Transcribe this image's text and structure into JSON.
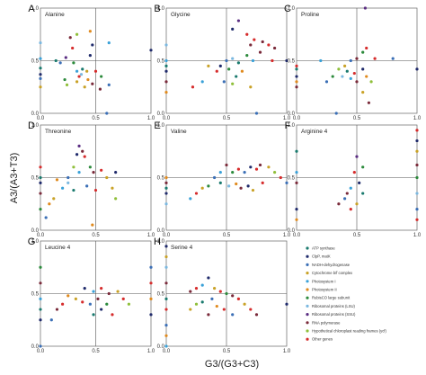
{
  "figure": {
    "ylabel": "A3/(A3+T3)",
    "xlabel": "G3/(G3+C3)"
  },
  "legend": [
    {
      "label": "ATP synthase",
      "color": "#1a7a6e"
    },
    {
      "label": "ClpP, matK",
      "color": "#1f2a6b"
    },
    {
      "label": "NADH-dehydrogenase",
      "color": "#3b6fb6"
    },
    {
      "label": "Cytochrome b/f complex",
      "color": "#c9a227"
    },
    {
      "label": "Photosystem I",
      "color": "#3aa1d8"
    },
    {
      "label": "Photosystem II",
      "color": "#e08a1e"
    },
    {
      "label": "RubisCO large subunit",
      "color": "#2c8a3c"
    },
    {
      "label": "Ribosomal proteins (LSU)",
      "color": "#7bb8e0"
    },
    {
      "label": "Ribosomal proteins (SSU)",
      "color": "#5a2d82"
    },
    {
      "label": "RNA polymerase",
      "color": "#7a2a3a"
    },
    {
      "label": "Hypothetical chloroplast reading frames (ycf)",
      "color": "#8fbf3a"
    },
    {
      "label": "Other genes",
      "color": "#d62c2c"
    }
  ],
  "chart_data": [
    {
      "type": "scatter",
      "letter": "A",
      "title": "Alanine",
      "xlim": [
        0,
        1
      ],
      "ylim": [
        0,
        1
      ],
      "xticks": [
        "0.0",
        "0.5",
        "1.0"
      ],
      "yticks": [
        "0.0",
        "0.5",
        "1.0"
      ],
      "points": [
        [
          0.33,
          0.75,
          10
        ],
        [
          0.27,
          0.72,
          9
        ],
        [
          0.29,
          0.62,
          11
        ],
        [
          0.45,
          0.78,
          5
        ],
        [
          0.47,
          0.65,
          1
        ],
        [
          0.62,
          0.67,
          4
        ],
        [
          1.0,
          0.6,
          1
        ],
        [
          0.23,
          0.53,
          8
        ],
        [
          0.14,
          0.5,
          0
        ],
        [
          0.18,
          0.48,
          2
        ],
        [
          0.3,
          0.48,
          6
        ],
        [
          0.33,
          0.4,
          4
        ],
        [
          0.38,
          0.42,
          0
        ],
        [
          0.37,
          0.37,
          7
        ],
        [
          0.42,
          0.4,
          3
        ],
        [
          0.5,
          0.4,
          11
        ],
        [
          0.55,
          0.35,
          6
        ],
        [
          0.33,
          0.3,
          3
        ],
        [
          0.43,
          0.32,
          5
        ],
        [
          0.47,
          0.28,
          9
        ],
        [
          0.22,
          0.32,
          6
        ],
        [
          0.24,
          0.27,
          10
        ],
        [
          0.4,
          0.25,
          3
        ],
        [
          0.54,
          0.23,
          9
        ],
        [
          0.62,
          0.27,
          2
        ],
        [
          0.0,
          0.43,
          0
        ],
        [
          0.0,
          0.37,
          1
        ],
        [
          0.0,
          0.33,
          2
        ],
        [
          0.0,
          0.25,
          3
        ],
        [
          0.0,
          0.52,
          4
        ],
        [
          0.0,
          0.67,
          7
        ],
        [
          0.35,
          0.35,
          11
        ],
        [
          0.6,
          0.0,
          2
        ],
        [
          0.45,
          0.55,
          1
        ]
      ]
    },
    {
      "type": "scatter",
      "letter": "B",
      "title": "Glycine",
      "xlim": [
        0,
        1
      ],
      "ylim": [
        0,
        1
      ],
      "xticks": [
        "0.0",
        "0.5",
        "1.0"
      ],
      "yticks": [
        "0.0",
        "0.5",
        "1.0"
      ],
      "points": [
        [
          0.6,
          0.88,
          8
        ],
        [
          0.55,
          0.8,
          1
        ],
        [
          0.67,
          0.75,
          11
        ],
        [
          0.7,
          0.65,
          9
        ],
        [
          0.73,
          0.7,
          11
        ],
        [
          0.8,
          0.68,
          9
        ],
        [
          0.85,
          0.65,
          11
        ],
        [
          0.9,
          0.62,
          9
        ],
        [
          0.67,
          0.55,
          6
        ],
        [
          0.78,
          0.58,
          9
        ],
        [
          0.88,
          0.5,
          11
        ],
        [
          0.72,
          0.5,
          4
        ],
        [
          0.6,
          0.48,
          0
        ],
        [
          0.55,
          0.52,
          7
        ],
        [
          0.5,
          0.5,
          2
        ],
        [
          0.45,
          0.45,
          1
        ],
        [
          0.35,
          0.45,
          3
        ],
        [
          0.42,
          0.4,
          11
        ],
        [
          0.52,
          0.42,
          6
        ],
        [
          0.58,
          0.35,
          0
        ],
        [
          0.48,
          0.3,
          2
        ],
        [
          0.55,
          0.28,
          10
        ],
        [
          0.63,
          0.4,
          5
        ],
        [
          0.3,
          0.3,
          4
        ],
        [
          0.22,
          0.25,
          11
        ],
        [
          0.7,
          0.25,
          3
        ],
        [
          0.0,
          0.45,
          0
        ],
        [
          0.0,
          0.4,
          1
        ],
        [
          0.0,
          0.3,
          9
        ],
        [
          0.0,
          0.2,
          5
        ],
        [
          0.0,
          0.5,
          4
        ],
        [
          0.0,
          0.65,
          7
        ],
        [
          0.75,
          0.0,
          2
        ],
        [
          1.0,
          0.5,
          1
        ]
      ]
    },
    {
      "type": "scatter",
      "letter": "C",
      "title": "Proline",
      "xlim": [
        0,
        1
      ],
      "ylim": [
        0,
        1
      ],
      "xticks": [
        "0.0",
        "0.5",
        "1.0"
      ],
      "yticks": [
        "0.0",
        "0.5",
        "1.0"
      ],
      "points": [
        [
          0.57,
          1.0,
          8
        ],
        [
          0.58,
          0.62,
          11
        ],
        [
          0.55,
          0.58,
          6
        ],
        [
          0.5,
          0.52,
          9
        ],
        [
          0.45,
          0.5,
          2
        ],
        [
          0.65,
          0.52,
          11
        ],
        [
          0.4,
          0.45,
          3
        ],
        [
          0.35,
          0.42,
          10
        ],
        [
          0.42,
          0.4,
          0
        ],
        [
          0.48,
          0.38,
          11
        ],
        [
          0.55,
          0.42,
          1
        ],
        [
          0.58,
          0.35,
          5
        ],
        [
          0.5,
          0.3,
          9
        ],
        [
          0.45,
          0.33,
          4
        ],
        [
          0.38,
          0.35,
          7
        ],
        [
          0.3,
          0.35,
          6
        ],
        [
          0.25,
          0.3,
          2
        ],
        [
          0.62,
          0.3,
          10
        ],
        [
          0.55,
          0.2,
          3
        ],
        [
          0.6,
          0.1,
          9
        ],
        [
          0.8,
          0.52,
          2
        ],
        [
          0.2,
          0.5,
          4
        ],
        [
          0.0,
          0.42,
          0
        ],
        [
          0.0,
          0.35,
          1
        ],
        [
          0.0,
          0.3,
          5
        ],
        [
          0.0,
          0.25,
          9
        ],
        [
          0.0,
          0.45,
          11
        ],
        [
          1.0,
          0.42,
          1
        ],
        [
          0.33,
          0.0,
          2
        ]
      ]
    },
    {
      "type": "scatter",
      "letter": "D",
      "title": "Threonine",
      "xlim": [
        0,
        1
      ],
      "ylim": [
        0,
        1
      ],
      "xticks": [
        "0.0",
        "0.5",
        "1.0"
      ],
      "yticks": [
        "0.0",
        "0.5",
        "1.0"
      ],
      "points": [
        [
          0.35,
          0.8,
          8
        ],
        [
          0.33,
          0.72,
          1
        ],
        [
          0.38,
          0.75,
          9
        ],
        [
          0.4,
          0.7,
          11
        ],
        [
          0.3,
          0.6,
          10
        ],
        [
          0.45,
          0.6,
          6
        ],
        [
          0.35,
          0.55,
          4
        ],
        [
          0.48,
          0.55,
          9
        ],
        [
          0.55,
          0.57,
          11
        ],
        [
          0.68,
          0.55,
          1
        ],
        [
          0.6,
          0.5,
          3
        ],
        [
          0.25,
          0.5,
          2
        ],
        [
          0.15,
          0.48,
          5
        ],
        [
          0.2,
          0.4,
          4
        ],
        [
          0.25,
          0.45,
          7
        ],
        [
          0.3,
          0.38,
          0
        ],
        [
          0.42,
          0.42,
          2
        ],
        [
          0.5,
          0.38,
          11
        ],
        [
          0.65,
          0.4,
          3
        ],
        [
          0.68,
          0.3,
          10
        ],
        [
          0.12,
          0.3,
          3
        ],
        [
          0.08,
          0.25,
          5
        ],
        [
          0.05,
          0.12,
          2
        ],
        [
          0.0,
          0.5,
          0
        ],
        [
          0.0,
          0.45,
          1
        ],
        [
          0.0,
          0.35,
          9
        ],
        [
          0.0,
          0.2,
          6
        ],
        [
          0.0,
          0.6,
          11
        ],
        [
          0.47,
          0.05,
          5
        ]
      ]
    },
    {
      "type": "scatter",
      "letter": "E",
      "title": "Valine",
      "xlim": [
        0,
        1
      ],
      "ylim": [
        0,
        1
      ],
      "xticks": [
        "0.0",
        "0.5",
        "1.0"
      ],
      "yticks": [
        "0.0",
        "0.5",
        "1.0"
      ],
      "points": [
        [
          0.75,
          0.58,
          11
        ],
        [
          0.78,
          0.62,
          9
        ],
        [
          0.85,
          0.6,
          3
        ],
        [
          0.9,
          0.55,
          10
        ],
        [
          0.7,
          0.6,
          1
        ],
        [
          0.65,
          0.55,
          2
        ],
        [
          0.6,
          0.58,
          11
        ],
        [
          0.55,
          0.55,
          6
        ],
        [
          0.5,
          0.62,
          9
        ],
        [
          0.45,
          0.55,
          4
        ],
        [
          0.4,
          0.5,
          2
        ],
        [
          0.45,
          0.45,
          0
        ],
        [
          0.52,
          0.42,
          7
        ],
        [
          0.58,
          0.44,
          5
        ],
        [
          0.62,
          0.4,
          9
        ],
        [
          0.68,
          0.42,
          1
        ],
        [
          0.72,
          0.38,
          3
        ],
        [
          0.8,
          0.45,
          11
        ],
        [
          0.35,
          0.42,
          6
        ],
        [
          0.3,
          0.4,
          3
        ],
        [
          0.25,
          0.35,
          11
        ],
        [
          0.2,
          0.3,
          4
        ],
        [
          0.95,
          0.5,
          11
        ],
        [
          0.0,
          0.5,
          5
        ],
        [
          0.0,
          0.45,
          9
        ],
        [
          0.0,
          0.4,
          0
        ],
        [
          0.0,
          0.35,
          1
        ],
        [
          0.0,
          0.25,
          7
        ],
        [
          1.0,
          0.45,
          2
        ]
      ]
    },
    {
      "type": "scatter",
      "letter": "F",
      "title": "Arginine 4",
      "xlim": [
        0,
        1
      ],
      "ylim": [
        0,
        1
      ],
      "xticks": [
        "0.0",
        "0.5",
        "1.0"
      ],
      "yticks": [
        "0.0",
        "0.5",
        "1.0"
      ],
      "points": [
        [
          0.5,
          0.7,
          8
        ],
        [
          0.48,
          0.55,
          11
        ],
        [
          0.52,
          0.45,
          1
        ],
        [
          0.45,
          0.4,
          4
        ],
        [
          0.42,
          0.35,
          9
        ],
        [
          0.4,
          0.3,
          2
        ],
        [
          0.55,
          0.35,
          0
        ],
        [
          0.5,
          0.25,
          3
        ],
        [
          0.45,
          0.2,
          11
        ],
        [
          0.35,
          0.25,
          9
        ],
        [
          0.55,
          0.6,
          6
        ],
        [
          1.0,
          0.95,
          11
        ],
        [
          1.0,
          0.85,
          1
        ],
        [
          1.0,
          0.75,
          3
        ],
        [
          1.0,
          0.62,
          9
        ],
        [
          1.0,
          0.5,
          6
        ],
        [
          1.0,
          0.35,
          7
        ],
        [
          1.0,
          0.2,
          2
        ],
        [
          1.0,
          0.1,
          11
        ],
        [
          0.0,
          0.75,
          0
        ],
        [
          0.0,
          0.55,
          4
        ],
        [
          0.0,
          0.45,
          9
        ],
        [
          0.0,
          0.2,
          1
        ],
        [
          0.0,
          0.1,
          5
        ]
      ]
    },
    {
      "type": "scatter",
      "letter": "G",
      "title": "Leucine 4",
      "xlim": [
        0,
        1
      ],
      "ylim": [
        0,
        1
      ],
      "xticks": [
        "0.0",
        "0.5",
        "1.0"
      ],
      "yticks": [
        "0.0",
        "0.5",
        "1.0"
      ],
      "points": [
        [
          0.4,
          0.55,
          1
        ],
        [
          0.48,
          0.52,
          4
        ],
        [
          0.55,
          0.55,
          11
        ],
        [
          0.62,
          0.5,
          9
        ],
        [
          0.7,
          0.52,
          3
        ],
        [
          0.75,
          0.45,
          11
        ],
        [
          0.8,
          0.4,
          10
        ],
        [
          0.6,
          0.4,
          6
        ],
        [
          0.52,
          0.45,
          9
        ],
        [
          0.45,
          0.4,
          2
        ],
        [
          0.38,
          0.42,
          11
        ],
        [
          0.32,
          0.45,
          3
        ],
        [
          0.25,
          0.48,
          5
        ],
        [
          0.2,
          0.4,
          11
        ],
        [
          0.15,
          0.35,
          9
        ],
        [
          0.1,
          0.25,
          2
        ],
        [
          0.55,
          0.35,
          1
        ],
        [
          0.65,
          0.3,
          11
        ],
        [
          0.48,
          0.3,
          0
        ],
        [
          0.0,
          0.75,
          6
        ],
        [
          0.0,
          0.6,
          9
        ],
        [
          0.0,
          0.45,
          4
        ],
        [
          0.0,
          0.35,
          0
        ],
        [
          0.0,
          0.25,
          1
        ],
        [
          1.0,
          0.75,
          2
        ],
        [
          1.0,
          0.6,
          11
        ],
        [
          1.0,
          0.45,
          5
        ],
        [
          1.0,
          0.3,
          1
        ],
        [
          0.0,
          0.0,
          2
        ]
      ]
    },
    {
      "type": "scatter",
      "letter": "H",
      "title": "Serine 4",
      "xlim": [
        0,
        1
      ],
      "ylim": [
        0,
        1
      ],
      "xticks": [
        "0.0",
        "0.5",
        "1.0"
      ],
      "yticks": [
        "0.0",
        "0.5",
        "1.0"
      ],
      "points": [
        [
          0.35,
          0.65,
          1
        ],
        [
          0.3,
          0.58,
          4
        ],
        [
          0.25,
          0.55,
          11
        ],
        [
          0.2,
          0.52,
          9
        ],
        [
          0.4,
          0.55,
          3
        ],
        [
          0.45,
          0.52,
          11
        ],
        [
          0.5,
          0.5,
          6
        ],
        [
          0.55,
          0.48,
          9
        ],
        [
          0.6,
          0.45,
          11
        ],
        [
          0.65,
          0.4,
          3
        ],
        [
          0.7,
          0.35,
          11
        ],
        [
          0.75,
          0.3,
          9
        ],
        [
          0.38,
          0.45,
          2
        ],
        [
          0.3,
          0.42,
          0
        ],
        [
          0.25,
          0.4,
          10
        ],
        [
          0.42,
          0.38,
          5
        ],
        [
          0.48,
          0.35,
          11
        ],
        [
          0.55,
          0.3,
          2
        ],
        [
          0.35,
          0.3,
          9
        ],
        [
          0.2,
          0.35,
          3
        ],
        [
          0.0,
          0.95,
          1
        ],
        [
          0.0,
          0.85,
          3
        ],
        [
          0.0,
          0.75,
          7
        ],
        [
          0.0,
          0.6,
          9
        ],
        [
          0.0,
          0.45,
          0
        ],
        [
          0.0,
          0.35,
          11
        ],
        [
          0.0,
          0.2,
          2
        ],
        [
          0.0,
          0.1,
          5
        ],
        [
          0.0,
          0.0,
          4
        ],
        [
          1.0,
          0.4,
          1
        ]
      ]
    }
  ]
}
